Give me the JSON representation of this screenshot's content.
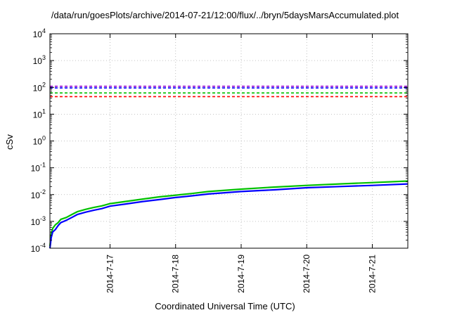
{
  "chart_data": {
    "type": "line",
    "title": "/data/run/goesPlots/archive/2014-07-21/12:00/flux/../bryn/5daysMarsAccumulated.plot",
    "xlabel": "Coordinated Universal Time (UTC)",
    "ylabel": "cSv",
    "yscale": "log",
    "ylim": [
      0.0001,
      10000
    ],
    "xlim": [
      "2014-07-16 02:00",
      "2014-07-21 13:00"
    ],
    "xticks": [
      "2014-7-17",
      "2014-7-18",
      "2014-7-19",
      "2014-7-20",
      "2014-7-21"
    ],
    "yticks": [
      {
        "base": "10",
        "exp": "-4"
      },
      {
        "base": "10",
        "exp": "-3"
      },
      {
        "base": "10",
        "exp": "-2"
      },
      {
        "base": "10",
        "exp": "-1"
      },
      {
        "base": "10",
        "exp": "0"
      },
      {
        "base": "10",
        "exp": "1"
      },
      {
        "base": "10",
        "exp": "2"
      },
      {
        "base": "10",
        "exp": "3"
      },
      {
        "base": "10",
        "exp": "4"
      }
    ],
    "grid": true,
    "threshold_lines": [
      {
        "value": 110,
        "color": "#9400d3",
        "style": "dashed"
      },
      {
        "value": 95,
        "color": "#0000ff",
        "style": "dashed"
      },
      {
        "value": 62,
        "color": "#00c000",
        "style": "dashed"
      },
      {
        "value": 45,
        "color": "#ff0000",
        "style": "dashed"
      }
    ],
    "series": [
      {
        "color": "#0000ff",
        "x": [
          "2014-07-16 02:00",
          "2014-07-16 02:30",
          "2014-07-16 03:00",
          "2014-07-16 04:00",
          "2014-07-16 05:00",
          "2014-07-16 06:00",
          "2014-07-16 08:00",
          "2014-07-16 10:00",
          "2014-07-16 12:00",
          "2014-07-16 15:00",
          "2014-07-16 18:00",
          "2014-07-16 21:00",
          "2014-07-17 00:00",
          "2014-07-17 06:00",
          "2014-07-17 12:00",
          "2014-07-17 18:00",
          "2014-07-18 00:00",
          "2014-07-18 06:00",
          "2014-07-18 12:00",
          "2014-07-19 00:00",
          "2014-07-19 12:00",
          "2014-07-20 00:00",
          "2014-07-20 12:00",
          "2014-07-21 00:00",
          "2014-07-21 13:00"
        ],
        "y": [
          0.0001,
          0.00025,
          0.0004,
          0.0005,
          0.0007,
          0.0009,
          0.0011,
          0.0014,
          0.0018,
          0.0022,
          0.0026,
          0.003,
          0.0037,
          0.0045,
          0.0055,
          0.0065,
          0.0078,
          0.009,
          0.0105,
          0.013,
          0.015,
          0.018,
          0.02,
          0.022,
          0.025
        ]
      },
      {
        "color": "#00c000",
        "x": [
          "2014-07-16 02:00",
          "2014-07-16 02:30",
          "2014-07-16 03:00",
          "2014-07-16 04:00",
          "2014-07-16 05:00",
          "2014-07-16 06:00",
          "2014-07-16 08:00",
          "2014-07-16 10:00",
          "2014-07-16 12:00",
          "2014-07-16 15:00",
          "2014-07-16 18:00",
          "2014-07-16 21:00",
          "2014-07-17 00:00",
          "2014-07-17 06:00",
          "2014-07-17 12:00",
          "2014-07-17 18:00",
          "2014-07-18 00:00",
          "2014-07-18 06:00",
          "2014-07-18 12:00",
          "2014-07-19 00:00",
          "2014-07-19 12:00",
          "2014-07-20 00:00",
          "2014-07-20 12:00",
          "2014-07-21 00:00",
          "2014-07-21 13:00"
        ],
        "y": [
          0.00012,
          0.00035,
          0.00055,
          0.00075,
          0.0009,
          0.0012,
          0.0014,
          0.0018,
          0.0023,
          0.0028,
          0.0033,
          0.0038,
          0.0046,
          0.0056,
          0.0068,
          0.0082,
          0.0095,
          0.011,
          0.013,
          0.016,
          0.019,
          0.022,
          0.025,
          0.028,
          0.032
        ]
      }
    ]
  }
}
